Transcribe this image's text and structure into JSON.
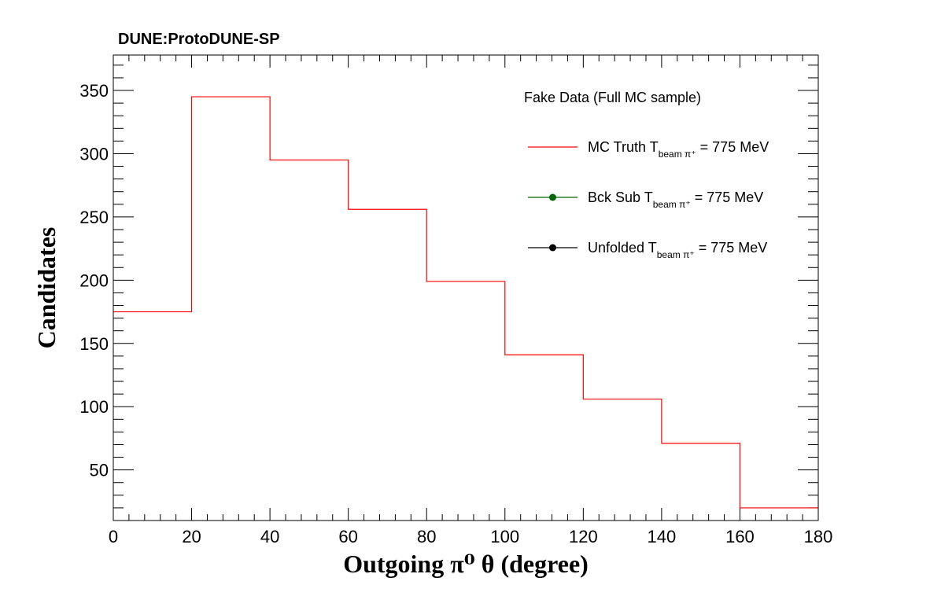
{
  "header": {
    "experiment_label": "DUNE:ProtoDUNE-SP"
  },
  "legend": {
    "header": "Fake Data (Full MC sample)",
    "placement": "top-right",
    "entries": [
      {
        "prefix": "MC Truth T",
        "sub": "beam π⁺",
        "suffix": " = 775 MeV",
        "style": "line",
        "color": "#ff0000"
      },
      {
        "prefix": "Bck Sub T",
        "sub": "beam π⁺",
        "suffix": " = 775 MeV",
        "style": "marker",
        "color": "#006600"
      },
      {
        "prefix": "Unfolded T",
        "sub": "beam π⁺",
        "suffix": " = 775 MeV",
        "style": "marker",
        "color": "#000000"
      }
    ]
  },
  "chart_data": {
    "type": "histogram",
    "xlabel": "Outgoing  π⁰  θ (degree)",
    "ylabel": "Candidates",
    "xlim": [
      0,
      180
    ],
    "ylim": [
      10,
      378
    ],
    "x_ticks": [
      0,
      20,
      40,
      60,
      80,
      100,
      120,
      140,
      160,
      180
    ],
    "y_ticks": [
      50,
      100,
      150,
      200,
      250,
      300,
      350
    ],
    "grid": false,
    "bin_edges": [
      0,
      20,
      40,
      60,
      80,
      100,
      120,
      140,
      160,
      180
    ],
    "series": [
      {
        "name": "MC Truth T beam π⁺ = 775 MeV",
        "style": "step",
        "color": "#ff0000",
        "values": [
          175,
          345,
          295,
          256,
          199,
          141,
          106,
          71,
          20
        ]
      }
    ]
  }
}
